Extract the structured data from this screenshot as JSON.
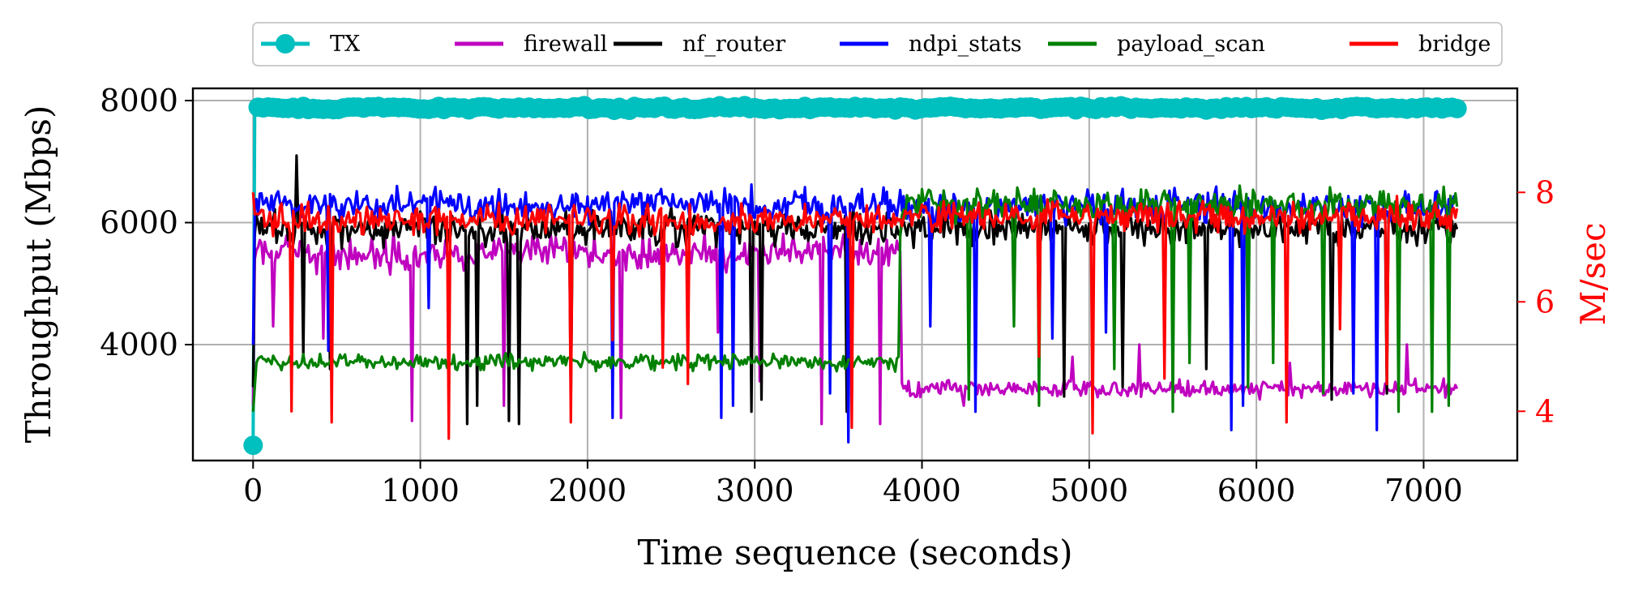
{
  "chart_data": {
    "type": "line",
    "title": "",
    "xlabel": "Time sequence (seconds)",
    "ylabel": "Throughput (Mbps)",
    "y2label": "M/sec",
    "xlim": [
      -360,
      7560
    ],
    "ylim": [
      2100,
      8200
    ],
    "y2lim": [
      3.1,
      9.9
    ],
    "x_ticks": [
      0,
      1000,
      2000,
      3000,
      4000,
      5000,
      6000,
      7000
    ],
    "y_ticks": [
      4000,
      6000,
      8000
    ],
    "y2_ticks": [
      4,
      6,
      8
    ],
    "grid": true,
    "legend_position": "top-center",
    "legend_entries": [
      "TX",
      "firewall",
      "nf_router",
      "ndpi_stats",
      "payload_scan",
      "bridge"
    ],
    "series": [
      {
        "name": "TX",
        "color": "#00bfbf",
        "axis": "left",
        "marker": "circle",
        "x_start": 0,
        "x_end": 7200,
        "x_step": 10,
        "phases": [
          {
            "from": 0,
            "to": 7200,
            "base": 7880,
            "noise": 25
          }
        ],
        "anchor_points": [
          [
            0,
            2350
          ],
          [
            5,
            7720
          ],
          [
            10,
            7830
          ]
        ],
        "dips": []
      },
      {
        "name": "firewall",
        "color": "#bf00bf",
        "axis": "left",
        "x_start": 0,
        "x_end": 7200,
        "x_step": 10,
        "phases": [
          {
            "from": 0,
            "to": 3870,
            "base": 5500,
            "noise": 220
          },
          {
            "from": 3870,
            "to": 7200,
            "base": 3280,
            "noise": 110
          }
        ],
        "anchor_points": [
          [
            0,
            3000
          ],
          [
            10,
            5400
          ]
        ],
        "dips": [
          [
            120,
            4300
          ],
          [
            420,
            4100
          ],
          [
            950,
            2750
          ],
          [
            1500,
            3000
          ],
          [
            2200,
            2800
          ],
          [
            2450,
            3900
          ],
          [
            2780,
            4200
          ],
          [
            3030,
            3400
          ],
          [
            3400,
            2700
          ],
          [
            3750,
            2700
          ],
          [
            4250,
            3000
          ],
          [
            4900,
            3800
          ],
          [
            5300,
            4000
          ],
          [
            6200,
            3700
          ],
          [
            6900,
            4000
          ]
        ]
      },
      {
        "name": "nf_router",
        "color": "#000000",
        "axis": "left",
        "x_start": 0,
        "x_end": 7200,
        "x_step": 10,
        "phases": [
          {
            "from": 0,
            "to": 3870,
            "base": 5900,
            "noise": 230
          },
          {
            "from": 3870,
            "to": 7200,
            "base": 5900,
            "noise": 220
          }
        ],
        "anchor_points": [
          [
            0,
            3300
          ],
          [
            10,
            5800
          ]
        ],
        "dips": [
          [
            260,
            7100
          ],
          [
            300,
            3800
          ],
          [
            460,
            3600
          ],
          [
            1280,
            2700
          ],
          [
            1340,
            3000
          ],
          [
            1530,
            2750
          ],
          [
            1590,
            2700
          ],
          [
            1900,
            3100
          ],
          [
            2980,
            2900
          ],
          [
            3040,
            3100
          ],
          [
            3550,
            2900
          ],
          [
            4850,
            3150
          ],
          [
            5200,
            3300
          ],
          [
            5700,
            3600
          ],
          [
            6450,
            3100
          ],
          [
            6780,
            3200
          ]
        ]
      },
      {
        "name": "ndpi_stats",
        "color": "#0000ff",
        "axis": "left",
        "x_start": 0,
        "x_end": 7200,
        "x_step": 10,
        "phases": [
          {
            "from": 0,
            "to": 3870,
            "base": 6300,
            "noise": 230
          },
          {
            "from": 3870,
            "to": 7200,
            "base": 6250,
            "noise": 220
          }
        ],
        "anchor_points": [
          [
            0,
            4000
          ],
          [
            10,
            6200
          ]
        ],
        "dips": [
          [
            450,
            3900
          ],
          [
            1050,
            4600
          ],
          [
            2150,
            2800
          ],
          [
            2800,
            2800
          ],
          [
            2870,
            3000
          ],
          [
            3450,
            3200
          ],
          [
            3560,
            2400
          ],
          [
            4050,
            4300
          ],
          [
            4320,
            2900
          ],
          [
            4780,
            4100
          ],
          [
            5100,
            4200
          ],
          [
            5850,
            2600
          ],
          [
            5920,
            3000
          ],
          [
            6580,
            3200
          ],
          [
            6720,
            2600
          ]
        ]
      },
      {
        "name": "payload_scan",
        "color": "#008000",
        "axis": "left",
        "x_start": 0,
        "x_end": 7200,
        "x_step": 10,
        "phases": [
          {
            "from": 0,
            "to": 3870,
            "base": 3720,
            "noise": 110
          },
          {
            "from": 3870,
            "to": 7200,
            "base": 6300,
            "noise": 210
          }
        ],
        "anchor_points": [
          [
            0,
            2900
          ],
          [
            5,
            4500
          ],
          [
            10,
            3300
          ],
          [
            3860,
            3800
          ],
          [
            3870,
            5800
          ]
        ],
        "dips": [
          [
            4280,
            3100
          ],
          [
            4550,
            4300
          ],
          [
            4700,
            3000
          ],
          [
            5150,
            3600
          ],
          [
            5500,
            2900
          ],
          [
            5600,
            3700
          ],
          [
            5950,
            3300
          ],
          [
            6100,
            3700
          ],
          [
            6400,
            3200
          ],
          [
            6850,
            2900
          ],
          [
            7050,
            2900
          ],
          [
            7150,
            3000
          ]
        ]
      },
      {
        "name": "bridge",
        "color": "#ff0000",
        "axis": "right",
        "x_start": 0,
        "x_end": 7200,
        "x_step": 10,
        "phases": [
          {
            "from": 0,
            "to": 3870,
            "base": 7.5,
            "noise": 0.22
          },
          {
            "from": 3870,
            "to": 7200,
            "base": 7.55,
            "noise": 0.22
          }
        ],
        "anchor_points": [
          [
            0,
            8.0
          ],
          [
            5,
            9.6
          ],
          [
            10,
            7.6
          ]
        ],
        "dips": [
          [
            230,
            4.0
          ],
          [
            470,
            3.8
          ],
          [
            1170,
            3.5
          ],
          [
            1900,
            3.8
          ],
          [
            2150,
            5.3
          ],
          [
            2450,
            4.8
          ],
          [
            2600,
            4.5
          ],
          [
            3580,
            3.7
          ],
          [
            4700,
            5.0
          ],
          [
            5020,
            3.6
          ],
          [
            5450,
            4.6
          ],
          [
            6180,
            3.8
          ],
          [
            6500,
            5.5
          ],
          [
            6780,
            4.5
          ]
        ]
      }
    ]
  }
}
